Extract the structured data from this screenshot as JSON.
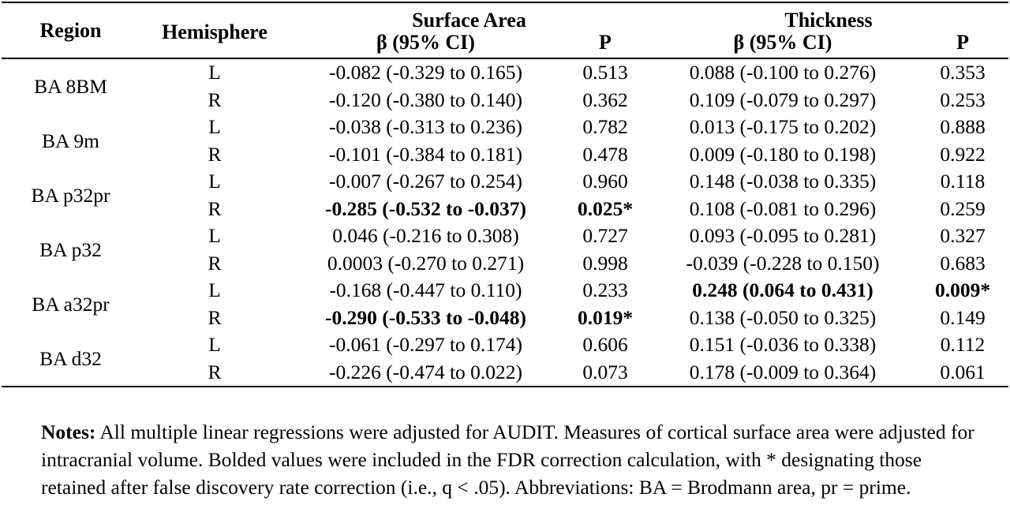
{
  "header": {
    "region": "Region",
    "hemisphere": "Hemisphere",
    "surface_area": "Surface Area",
    "thickness": "Thickness",
    "beta_ci": "β (95% CI)",
    "p": "P"
  },
  "rows": [
    {
      "region": "BA 8BM",
      "hemi": "L",
      "sa_beta": "-0.082 (-0.329 to 0.165)",
      "sa_p": "0.513",
      "th_beta": "0.088 (-0.100 to 0.276)",
      "th_p": "0.353"
    },
    {
      "region": "",
      "hemi": "R",
      "sa_beta": "-0.120 (-0.380 to 0.140)",
      "sa_p": "0.362",
      "th_beta": "0.109 (-0.079 to 0.297)",
      "th_p": "0.253"
    },
    {
      "region": "BA 9m",
      "hemi": "L",
      "sa_beta": "-0.038 (-0.313 to 0.236)",
      "sa_p": "0.782",
      "th_beta": "0.013 (-0.175 to 0.202)",
      "th_p": "0.888"
    },
    {
      "region": "",
      "hemi": "R",
      "sa_beta": "-0.101 (-0.384 to 0.181)",
      "sa_p": "0.478",
      "th_beta": "0.009 (-0.180 to 0.198)",
      "th_p": "0.922"
    },
    {
      "region": "BA p32pr",
      "hemi": "L",
      "sa_beta": "-0.007 (-0.267 to 0.254)",
      "sa_p": "0.960",
      "th_beta": "0.148 (-0.038 to 0.335)",
      "th_p": "0.118"
    },
    {
      "region": "",
      "hemi": "R",
      "sa_beta": "-0.285 (-0.532 to -0.037)",
      "sa_p": "0.025*",
      "th_beta": "0.108 (-0.081 to 0.296)",
      "th_p": "0.259"
    },
    {
      "region": "BA p32",
      "hemi": "L",
      "sa_beta": "0.046 (-0.216 to 0.308)",
      "sa_p": "0.727",
      "th_beta": "0.093 (-0.095 to 0.281)",
      "th_p": "0.327"
    },
    {
      "region": "",
      "hemi": "R",
      "sa_beta": "0.0003 (-0.270 to 0.271)",
      "sa_p": "0.998",
      "th_beta": "-0.039 (-0.228 to 0.150)",
      "th_p": "0.683"
    },
    {
      "region": "BA a32pr",
      "hemi": "L",
      "sa_beta": "-0.168 (-0.447 to 0.110)",
      "sa_p": "0.233",
      "th_beta": "0.248 (0.064 to 0.431)",
      "th_p": "0.009*"
    },
    {
      "region": "",
      "hemi": "R",
      "sa_beta": "-0.290 (-0.533 to -0.048)",
      "sa_p": "0.019*",
      "th_beta": "0.138 (-0.050 to 0.325)",
      "th_p": "0.149"
    },
    {
      "region": "BA d32",
      "hemi": "L",
      "sa_beta": "-0.061 (-0.297 to 0.174)",
      "sa_p": "0.606",
      "th_beta": "0.151 (-0.036 to 0.338)",
      "th_p": "0.112"
    },
    {
      "region": "",
      "hemi": "R",
      "sa_beta": "-0.226 (-0.474 to 0.022)",
      "sa_p": "0.073",
      "th_beta": "0.178 (-0.009 to 0.364)",
      "th_p": "0.061"
    }
  ],
  "notes": {
    "label": "Notes:",
    "text": " All multiple linear regressions were adjusted for AUDIT. Measures of cortical surface area were adjusted for intracranial volume. Bolded values were included in the FDR correction calculation, with * designating those retained after false discovery rate correction (i.e., q < .05). Abbreviations: BA = Brodmann area, pr = prime."
  }
}
